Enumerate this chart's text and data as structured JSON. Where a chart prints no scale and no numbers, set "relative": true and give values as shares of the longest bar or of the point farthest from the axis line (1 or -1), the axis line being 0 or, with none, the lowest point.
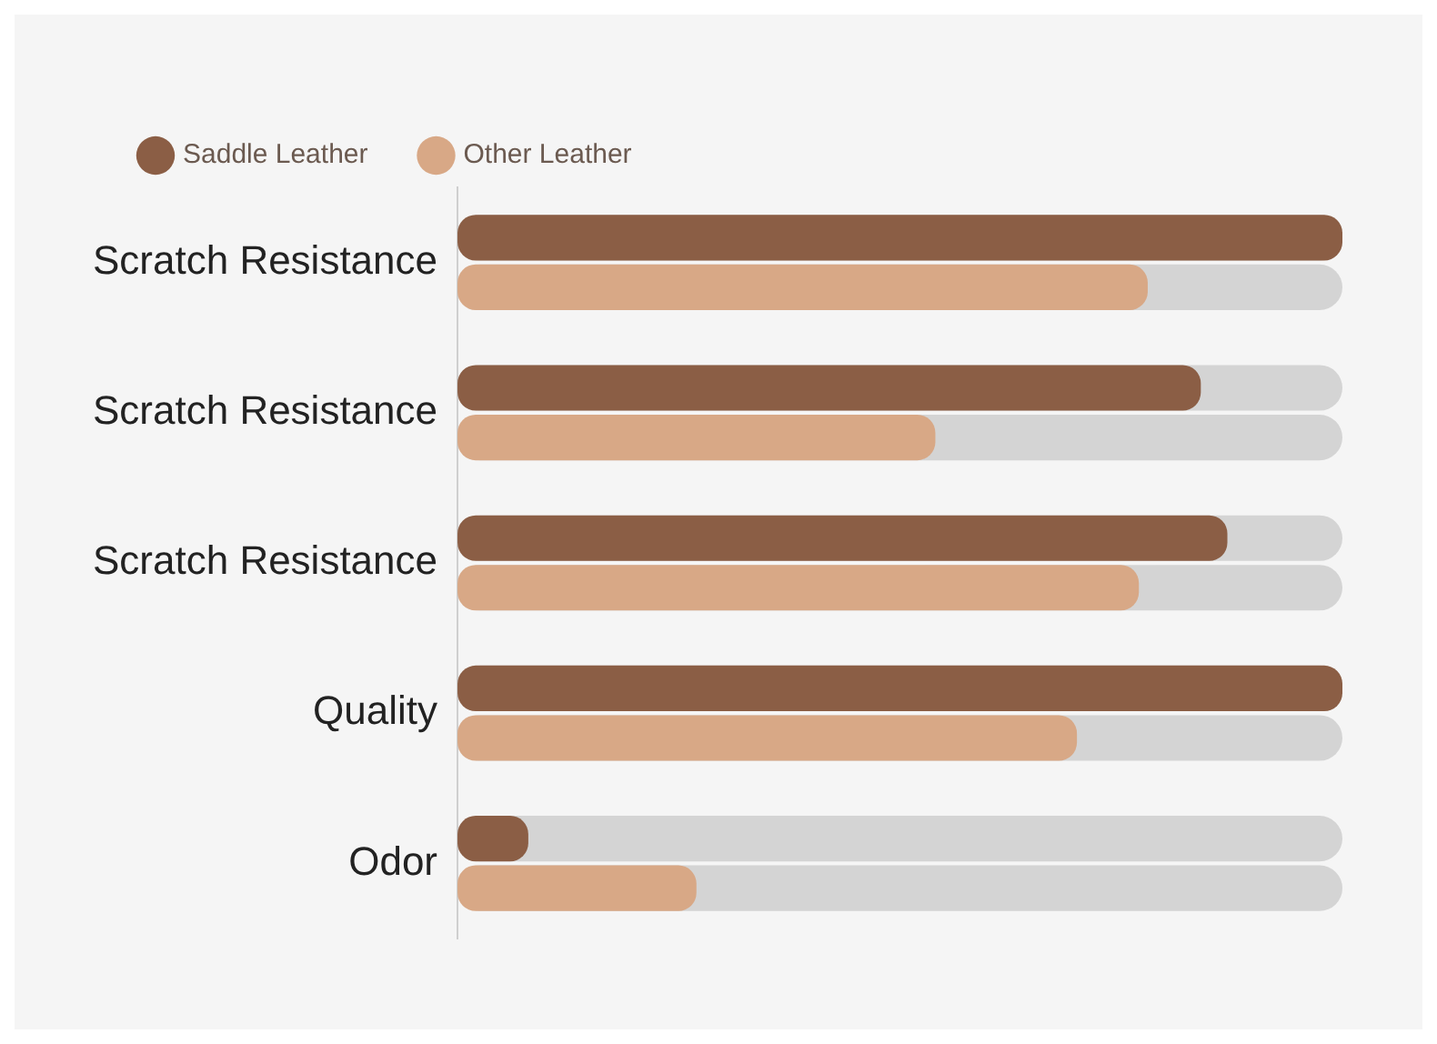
{
  "chart_data": {
    "type": "bar",
    "orientation": "horizontal",
    "relative": true,
    "legend": "top left",
    "categories": [
      "Scratch Resistance",
      "Scratch Resistance",
      "Scratch Resistance",
      "Quality",
      "Odor"
    ],
    "series": [
      {
        "name": "Saddle Leather",
        "color": "#8b5e45",
        "values": [
          1,
          0.84,
          0.87,
          1,
          0.08
        ]
      },
      {
        "name": "Other Leather",
        "color": "#d8a886",
        "values": [
          0.78,
          0.54,
          0.77,
          0.7,
          0.27
        ]
      }
    ]
  }
}
